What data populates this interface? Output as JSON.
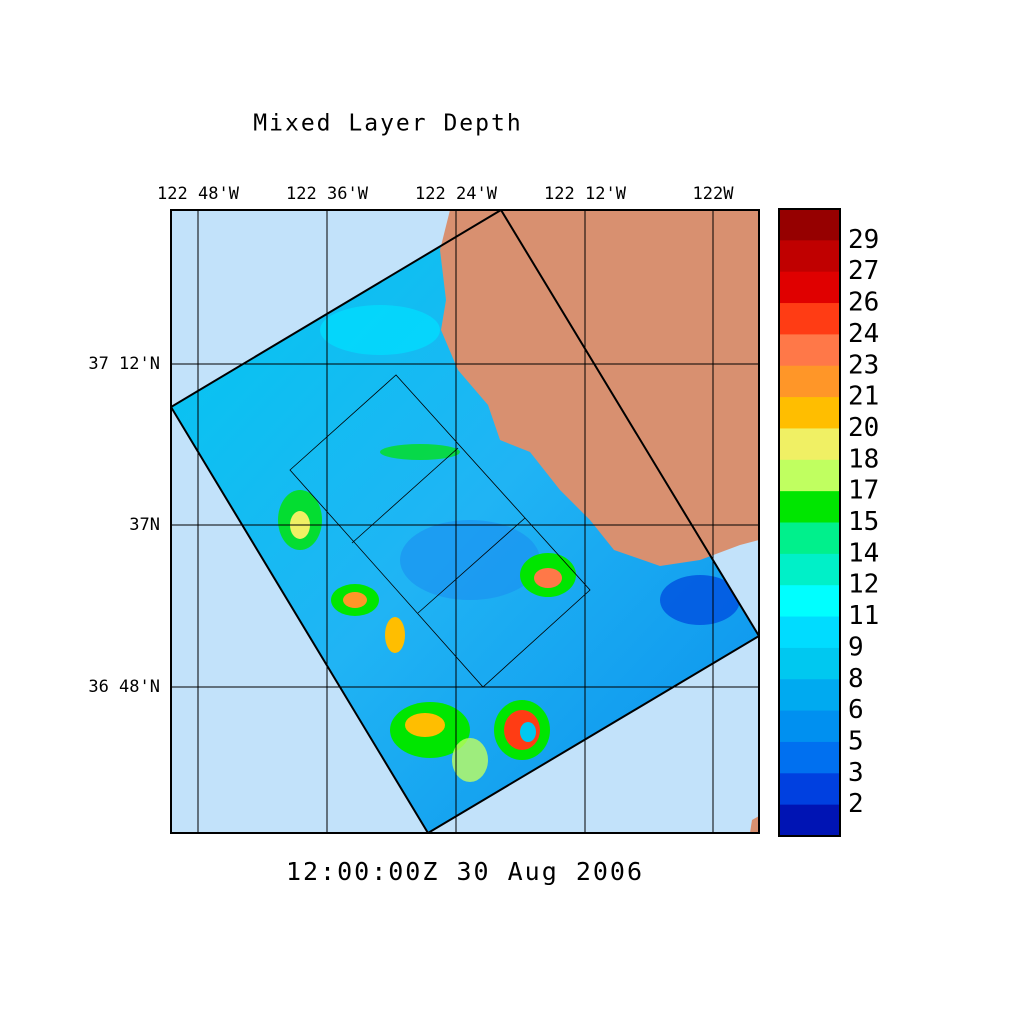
{
  "title": "Mixed Layer Depth",
  "timestamp": "12:00:00Z  30 Aug 2006",
  "lon_labels": [
    "122 48'W",
    "122 36'W",
    "122 24'W",
    "122 12'W",
    "122W"
  ],
  "lat_labels": [
    "37 12'N",
    "37N",
    "36 48'N"
  ],
  "colorbar": {
    "labels": [
      "29",
      "27",
      "26",
      "24",
      "23",
      "21",
      "20",
      "18",
      "17",
      "15",
      "14",
      "12",
      "11",
      "9",
      "8",
      "6",
      "5",
      "3",
      "2"
    ],
    "colors": [
      "#960000",
      "#c00000",
      "#e00000",
      "#ff3c14",
      "#ff7848",
      "#ff9628",
      "#ffbe00",
      "#f0f064",
      "#c0ff60",
      "#00e600",
      "#00f08c",
      "#00f0c8",
      "#00ffff",
      "#00dcff",
      "#00c8f0",
      "#00aaf0",
      "#0090f0",
      "#0070f0",
      "#0040e0",
      "#0014b4"
    ]
  }
}
